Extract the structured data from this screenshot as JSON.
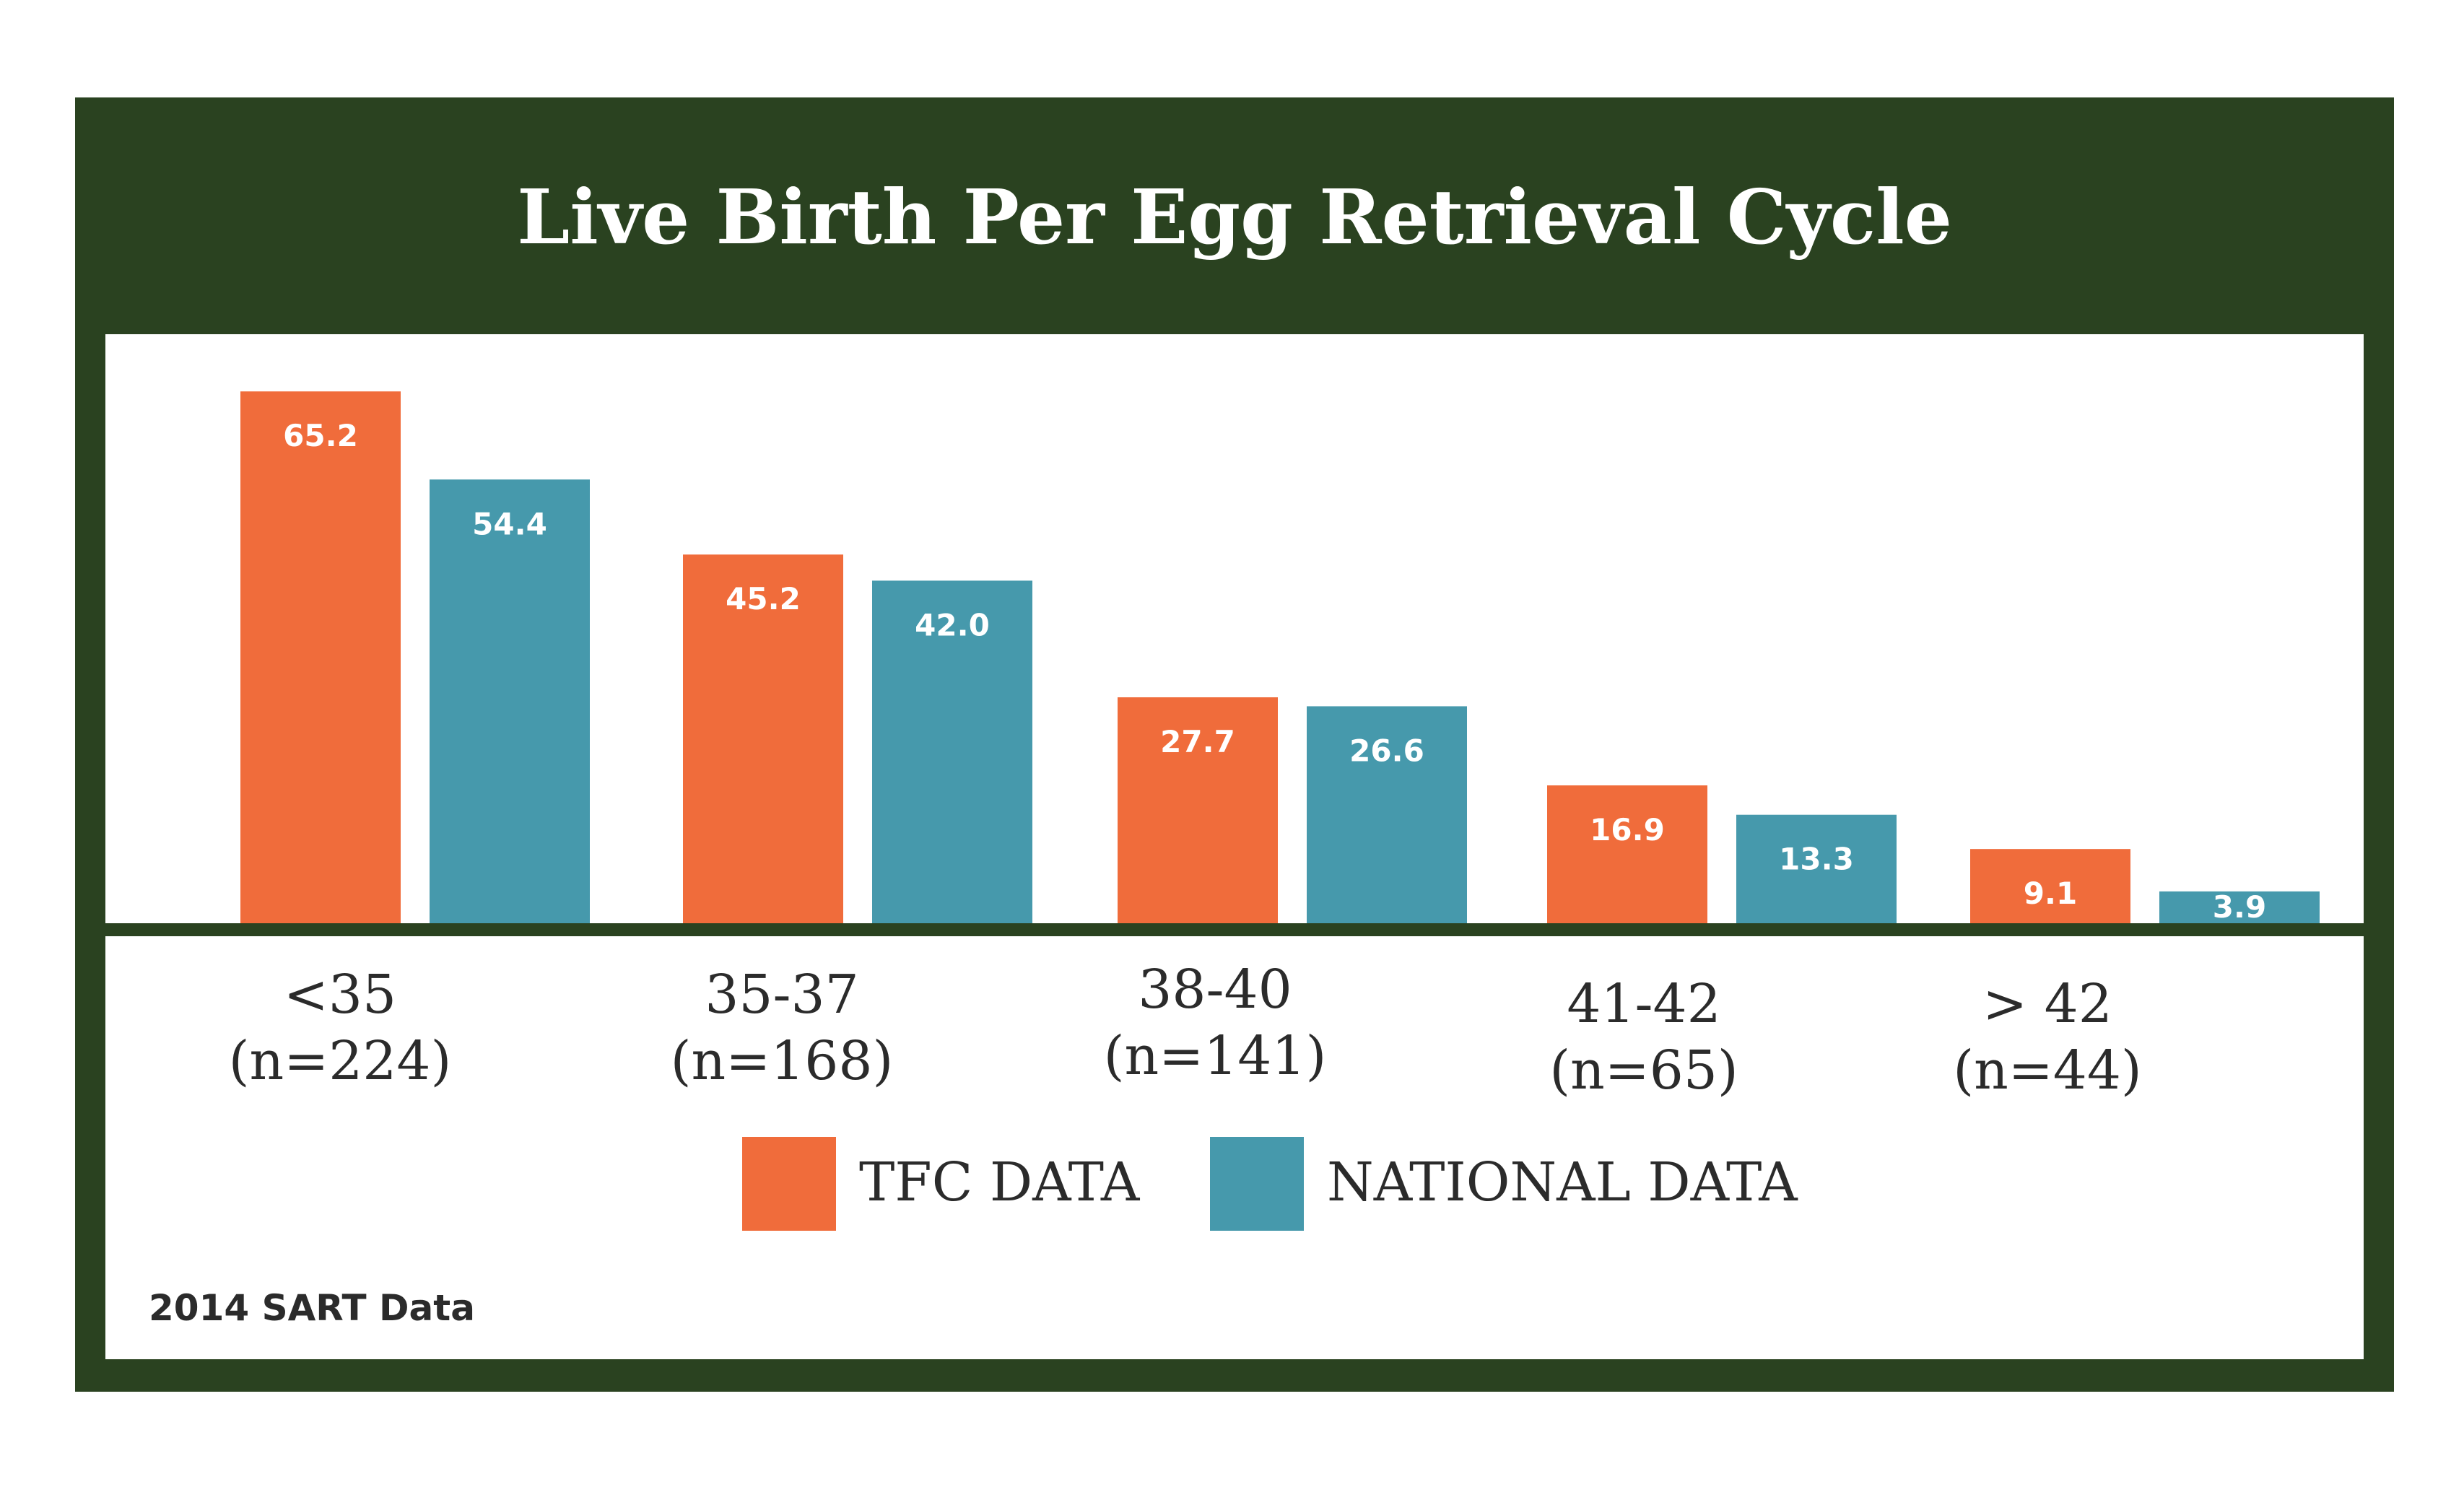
{
  "colors": {
    "frame": "#2a4220",
    "tfc": "#f06c3b",
    "national": "#4699ac",
    "label_text": "#ffffff",
    "axis_text": "#2b2b2b"
  },
  "chart_data": {
    "type": "bar",
    "title": "Live Birth Per Egg Retrieval Cycle",
    "categories": [
      {
        "age": "<35",
        "n": "(n=224)"
      },
      {
        "age": "35-37",
        "n": "(n=168)"
      },
      {
        "age": "38-40",
        "n": "(n=141)"
      },
      {
        "age": "41-42",
        "n": "(n=65)"
      },
      {
        "age": "> 42",
        "n": "(n=44)"
      }
    ],
    "series": [
      {
        "name": "TFC DATA",
        "color": "#f06c3b",
        "values": [
          65.2,
          45.2,
          27.7,
          16.9,
          9.1
        ],
        "labels": [
          "65.2",
          "45.2",
          "27.7",
          "16.9",
          "9.1"
        ]
      },
      {
        "name": "NATIONAL DATA",
        "color": "#4699ac",
        "values": [
          54.4,
          42.0,
          26.6,
          13.3,
          3.9
        ],
        "labels": [
          "54.4",
          "42.0",
          "26.6",
          "13.3",
          "3.9"
        ]
      }
    ],
    "ylim": [
      0,
      70
    ],
    "grid": false,
    "legend_position": "bottom-center",
    "source": "2014 SART Data"
  }
}
